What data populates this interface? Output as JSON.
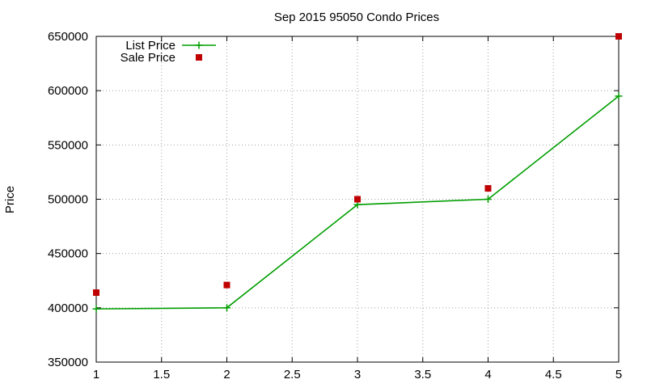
{
  "chart_data": {
    "type": "line",
    "title": "Sep 2015 95050 Condo Prices",
    "xlabel": "",
    "ylabel": "Price",
    "xlim": [
      1,
      5
    ],
    "ylim": [
      350000,
      650000
    ],
    "x_ticks": [
      1,
      1.5,
      2,
      2.5,
      3,
      3.5,
      4,
      4.5,
      5
    ],
    "x_tick_labels": [
      "1",
      "1.5",
      "2",
      "2.5",
      "3",
      "3.5",
      "4",
      "4.5",
      "5"
    ],
    "y_ticks": [
      350000,
      400000,
      450000,
      500000,
      550000,
      600000,
      650000
    ],
    "y_tick_labels": [
      "350000",
      "400000",
      "450000",
      "500000",
      "550000",
      "600000",
      "650000"
    ],
    "grid": true,
    "legend_position": "top-left",
    "series": [
      {
        "name": "List Price",
        "style": "line-with-plus-markers",
        "color": "#009e00",
        "x": [
          1,
          2,
          3,
          4,
          5
        ],
        "values": [
          399000,
          400000,
          495000,
          500000,
          595000
        ]
      },
      {
        "name": "Sale Price",
        "style": "square-markers",
        "color": "#c00000",
        "x": [
          1,
          2,
          3,
          4,
          5
        ],
        "values": [
          414000,
          421000,
          500000,
          510000,
          650000
        ]
      }
    ]
  }
}
